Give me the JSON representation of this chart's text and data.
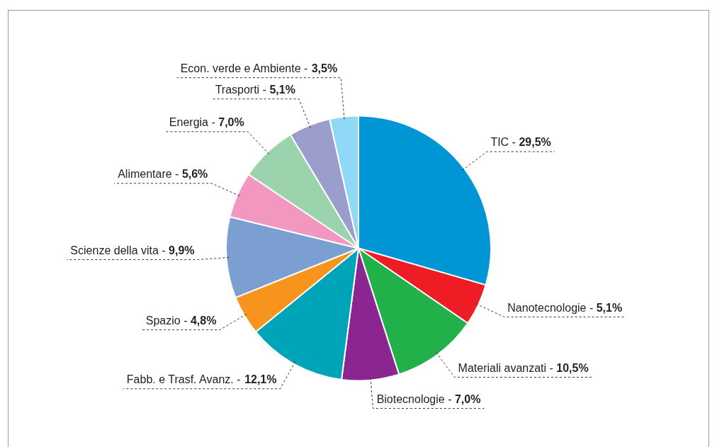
{
  "chart_data": {
    "type": "pie",
    "categories": [
      "TIC -",
      "Nanotecnologie -",
      "Materiali avanzati -",
      "Biotecnologie -",
      "Fabb. e Trasf. Avanz. -",
      "Spazio -",
      "Scienze della vita -",
      "Alimentare -",
      "Energia -",
      "Trasporti -",
      "Econ. verde e Ambiente -"
    ],
    "values": [
      29.5,
      5.1,
      10.5,
      7.0,
      12.1,
      4.8,
      9.9,
      5.6,
      7.0,
      5.1,
      3.5
    ],
    "value_labels": [
      "29,5%",
      "5,1%",
      "10,5%",
      "7,0%",
      "12,1%",
      "4,8%",
      "9,9%",
      "5,6%",
      "7,0%",
      "5,1%",
      "3,5%"
    ],
    "colors": [
      "#0096d6",
      "#ee1c25",
      "#22b04b",
      "#8b2590",
      "#00a4b8",
      "#f7941d",
      "#7b9fd1",
      "#f298c0",
      "#9ad3ac",
      "#9b9ecc",
      "#8fd8f6"
    ],
    "legend": false
  }
}
